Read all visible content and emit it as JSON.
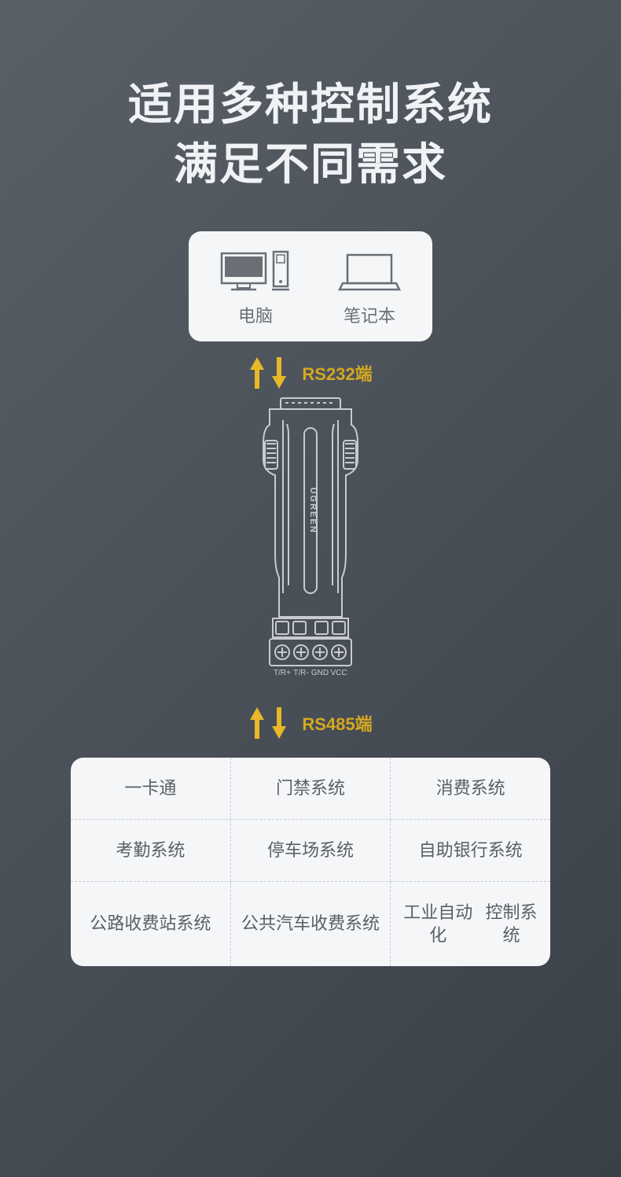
{
  "title_line1": "适用多种控制系统",
  "title_line2": "满足不同需求",
  "top_devices": [
    {
      "label": "电脑"
    },
    {
      "label": "笔记本"
    }
  ],
  "port_labels": {
    "top": "RS232端",
    "bottom": "RS485端"
  },
  "colors": {
    "arrow": "#e8b828",
    "label": "#d4a820",
    "outline": "#c8ccd0",
    "device_icon": "#6a6f76"
  },
  "connector": {
    "brand": "UGREEN",
    "pins": [
      "T/R+",
      "T/R-",
      "GND",
      "VCC"
    ]
  },
  "applications": [
    [
      "一卡通",
      "门禁系统",
      "消费系统"
    ],
    [
      "考勤系统",
      "停车场系统",
      "自助银行系统"
    ],
    [
      "公路\n收费站系统",
      "公共汽车\n收费系统",
      "工业自动化\n控制系统"
    ]
  ]
}
